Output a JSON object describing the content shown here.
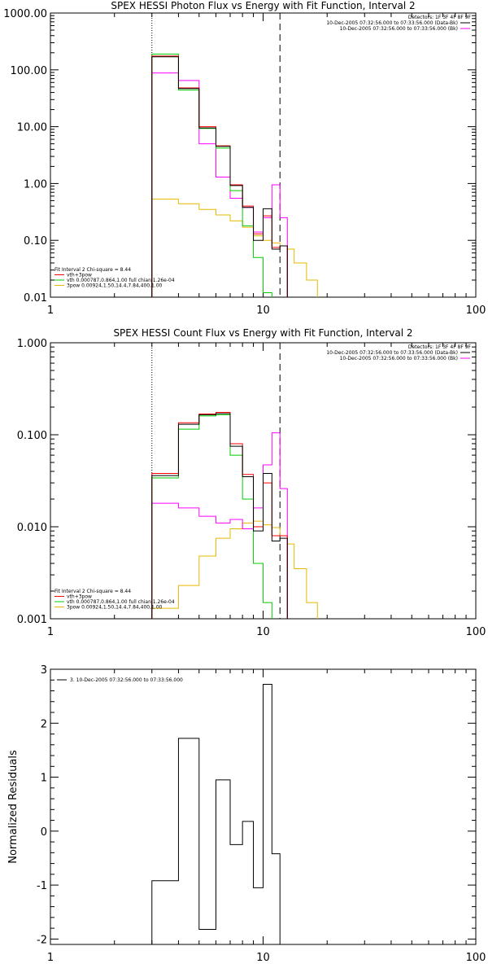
{
  "colors": {
    "total": "#000000",
    "total_fit": "#ff0000",
    "data": "#ff00ff",
    "vth": "#00cc00",
    "powerlaw": "#e6b800"
  },
  "chart_data": [
    {
      "type": "line",
      "title": "SPEX HESSI Photon Flux vs Energy with Fit Function, Interval 2",
      "xlabel": "",
      "ylabel": "",
      "xscale": "log",
      "yscale": "log",
      "xlim": [
        1,
        100
      ],
      "ylim": [
        0.01,
        1000
      ],
      "x_ticks": [
        "1",
        "10",
        "100"
      ],
      "y_ticks": [
        "0.01",
        "0.10",
        "1.00",
        "10.00",
        "100.00",
        "1000.00"
      ],
      "top_right_legend": [
        "Detectors: 1F 3F 4F 8F 9F",
        "10-Dec-2005 07:32:56.000 to 07:33:56.000 (Data-Bk)",
        "10-Dec-2005 07:32:56.000 to 07:33:56.000 (Bk)"
      ],
      "bottom_left_legend": [
        "Fit Interval 2   Chi-square = 8.44",
        "vth+3pow",
        "vth 0.000787,0.864,1.00  full chian 1.26e-04",
        "3pow 0.00924,1.50,14.4,7.84,400,1.00"
      ],
      "vlines": [
        {
          "x": 3.0,
          "style": "dotted"
        },
        {
          "x": 12.0,
          "style": "dashed"
        }
      ],
      "edges": [
        3,
        4,
        5,
        6,
        7,
        8,
        9,
        10,
        11,
        12,
        13,
        14,
        16,
        18
      ],
      "series": [
        {
          "color_key": "total",
          "values": [
            170,
            47,
            9.5,
            4.5,
            0.92,
            0.38,
            0.1,
            0.36,
            0.07,
            0.08
          ]
        },
        {
          "color_key": "total_fit",
          "values": [
            175,
            48,
            10,
            4.6,
            0.95,
            0.4,
            0.13,
            0.27,
            0.075,
            0.08
          ]
        },
        {
          "color_key": "data",
          "values": [
            88,
            65,
            5,
            1.3,
            0.55,
            0.38,
            0.14,
            0.25,
            0.95,
            0.25
          ]
        },
        {
          "color_key": "vth",
          "values": [
            190,
            44,
            9.3,
            4.2,
            0.75,
            0.18,
            0.05,
            0.012
          ]
        },
        {
          "color_key": "powerlaw",
          "values": [
            0.53,
            0.44,
            0.35,
            0.28,
            0.22,
            0.17,
            0.12,
            0.1,
            0.09,
            0.08,
            0.07,
            0.04,
            0.02
          ]
        }
      ]
    },
    {
      "type": "line",
      "title": "SPEX HESSI Count Flux vs Energy with Fit Function, Interval 2",
      "xlabel": "",
      "ylabel": "",
      "xscale": "log",
      "yscale": "log",
      "xlim": [
        1,
        100
      ],
      "ylim": [
        0.001,
        1.0
      ],
      "x_ticks": [
        "1",
        "10",
        "100"
      ],
      "y_ticks": [
        "0.001",
        "0.010",
        "0.100",
        "1.000"
      ],
      "top_right_legend": [
        "Detectors: 1F 3F 4F 8F 9F",
        "10-Dec-2005 07:32:56.000 to 07:33:56.000 (Data-Bk)",
        "10-Dec-2005 07:32:56.000 to 07:33:56.000 (Bk)"
      ],
      "bottom_left_legend": [
        "Fit Interval 2   Chi-square = 8.44",
        "vth+3pow",
        "vth 0.000787,0.864,1.00  full chian 1.26e-04",
        "3pow 0.00924,1.50,14.4,7.84,400,1.00"
      ],
      "vlines": [
        {
          "x": 3.0,
          "style": "dotted"
        },
        {
          "x": 12.0,
          "style": "dashed"
        }
      ],
      "edges": [
        3,
        4,
        5,
        6,
        7,
        8,
        9,
        10,
        11,
        12,
        13,
        14,
        16,
        18
      ],
      "series": [
        {
          "color_key": "total",
          "values": [
            0.036,
            0.13,
            0.165,
            0.17,
            0.075,
            0.035,
            0.009,
            0.038,
            0.007,
            0.0075
          ]
        },
        {
          "color_key": "total_fit",
          "values": [
            0.038,
            0.135,
            0.168,
            0.175,
            0.08,
            0.037,
            0.01,
            0.03,
            0.008,
            0.008
          ]
        },
        {
          "color_key": "data",
          "values": [
            0.018,
            0.016,
            0.013,
            0.011,
            0.012,
            0.0095,
            0.016,
            0.047,
            0.105,
            0.026
          ]
        },
        {
          "color_key": "vth",
          "values": [
            0.034,
            0.115,
            0.16,
            0.165,
            0.06,
            0.02,
            0.004,
            0.0015
          ]
        },
        {
          "color_key": "powerlaw",
          "values": [
            0.0013,
            0.0023,
            0.0048,
            0.0075,
            0.0095,
            0.011,
            0.0115,
            0.0105,
            0.0098,
            0.008,
            0.0065,
            0.0035,
            0.0015
          ]
        }
      ]
    },
    {
      "type": "line",
      "title": "",
      "xlabel": "",
      "ylabel": "Normalized Residuals",
      "xscale": "log",
      "yscale": "linear",
      "xlim": [
        1,
        100
      ],
      "ylim": [
        -2.1,
        3.0
      ],
      "x_ticks": [
        "1",
        "10",
        "100"
      ],
      "y_ticks": [
        "-2",
        "-1",
        "0",
        "1",
        "2",
        "3"
      ],
      "top_left_legend": "3. 10-Dec-2005 07:32:56.000 to 07:33:56.000",
      "edges": [
        3,
        4,
        5,
        6,
        7,
        8,
        9,
        10,
        11,
        12
      ],
      "values": [
        -0.92,
        1.72,
        -1.82,
        0.95,
        -0.25,
        0.18,
        -1.05,
        2.72,
        -0.42
      ]
    }
  ]
}
